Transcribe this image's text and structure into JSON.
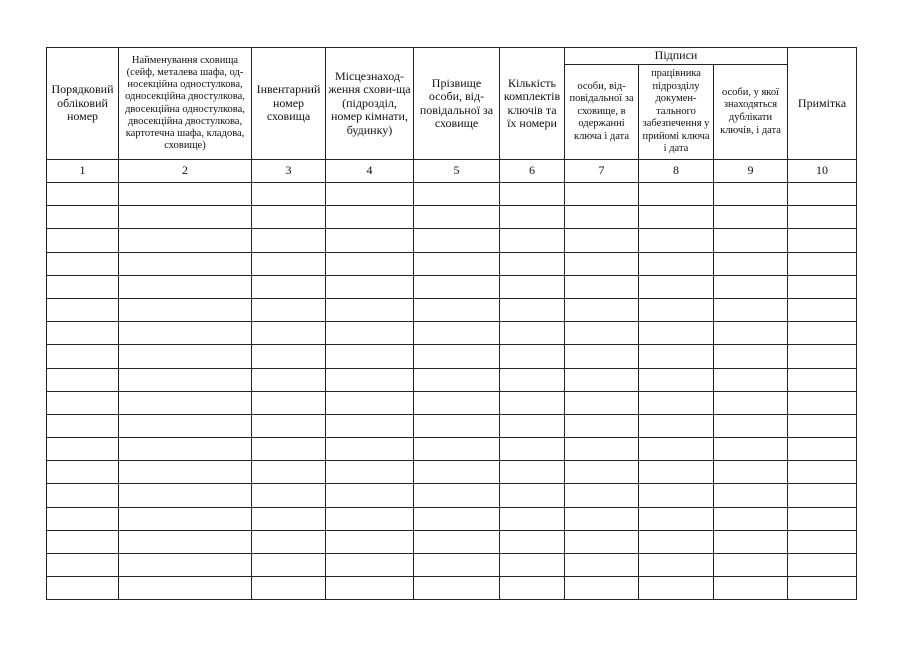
{
  "table": {
    "headers": {
      "c1": "Порядковий обліковий номер",
      "c2": "Найменування сховища (сейф, металева шафа, од-носекційна одностулкова, односекційна двостулкова, двосекційна одностулкова, двосекційна двостулкова, картотечна шафа, кладова, сховище)",
      "c3": "Інвентарний номер сховища",
      "c4": "Місцезнаход-ження схови-ща (підрозділ, номер кімнати, будинку)",
      "c5": "Прізвище особи, від-повідальної за сховище",
      "c6": "Кількість комплектів ключів та їх номери",
      "signatures": "Підписи",
      "c7": "особи, від-повідальної за сховище, в одержанні ключа і дата",
      "c8": "працівника підрозділу докумен-тального забезпечення у прийомі ключа і дата",
      "c9": "особи, у якої знаходяться дублікати ключів, і дата",
      "c10": "Примітка"
    },
    "column_numbers": [
      "1",
      "2",
      "3",
      "4",
      "5",
      "6",
      "7",
      "8",
      "9",
      "10"
    ]
  }
}
